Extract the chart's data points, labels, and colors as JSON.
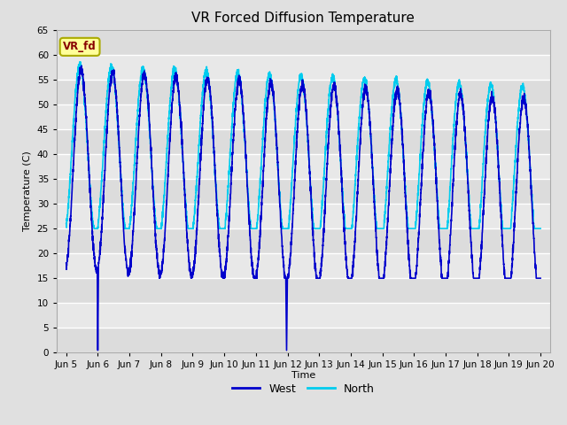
{
  "title": "VR Forced Diffusion Temperature",
  "ylabel": "Temperature (C)",
  "xlabel": "Time",
  "ylim": [
    0,
    65
  ],
  "xlim": [
    4.7,
    20.3
  ],
  "xtick_days": [
    5,
    6,
    7,
    8,
    9,
    10,
    11,
    12,
    13,
    14,
    15,
    16,
    17,
    18,
    19,
    20
  ],
  "xtick_labels": [
    "Jun 5",
    "Jun 6",
    "Jun 7",
    "Jun 8",
    "Jun 9",
    "Jun 10",
    "Jun 11",
    "Jun 12",
    "Jun 13",
    "Jun 14",
    "Jun 15",
    "Jun 16",
    "Jun 17",
    "Jun 18",
    "Jun 19",
    "Jun 20"
  ],
  "ytick_vals": [
    0,
    5,
    10,
    15,
    20,
    25,
    30,
    35,
    40,
    45,
    50,
    55,
    60,
    65
  ],
  "west_color": "#0000CC",
  "north_color": "#00CCEE",
  "line_width": 1.2,
  "fig_bg": "#E0E0E0",
  "ax_bg": "#EBEBEB",
  "grid_color": "#FFFFFF",
  "label_box_fc": "#FFFF99",
  "label_box_ec": "#AAAA00",
  "label_text": "VR_fd",
  "label_text_color": "#880000",
  "legend_west": "West",
  "legend_north": "North",
  "title_fontsize": 11,
  "axis_label_fontsize": 8,
  "tick_fontsize": 7.5
}
